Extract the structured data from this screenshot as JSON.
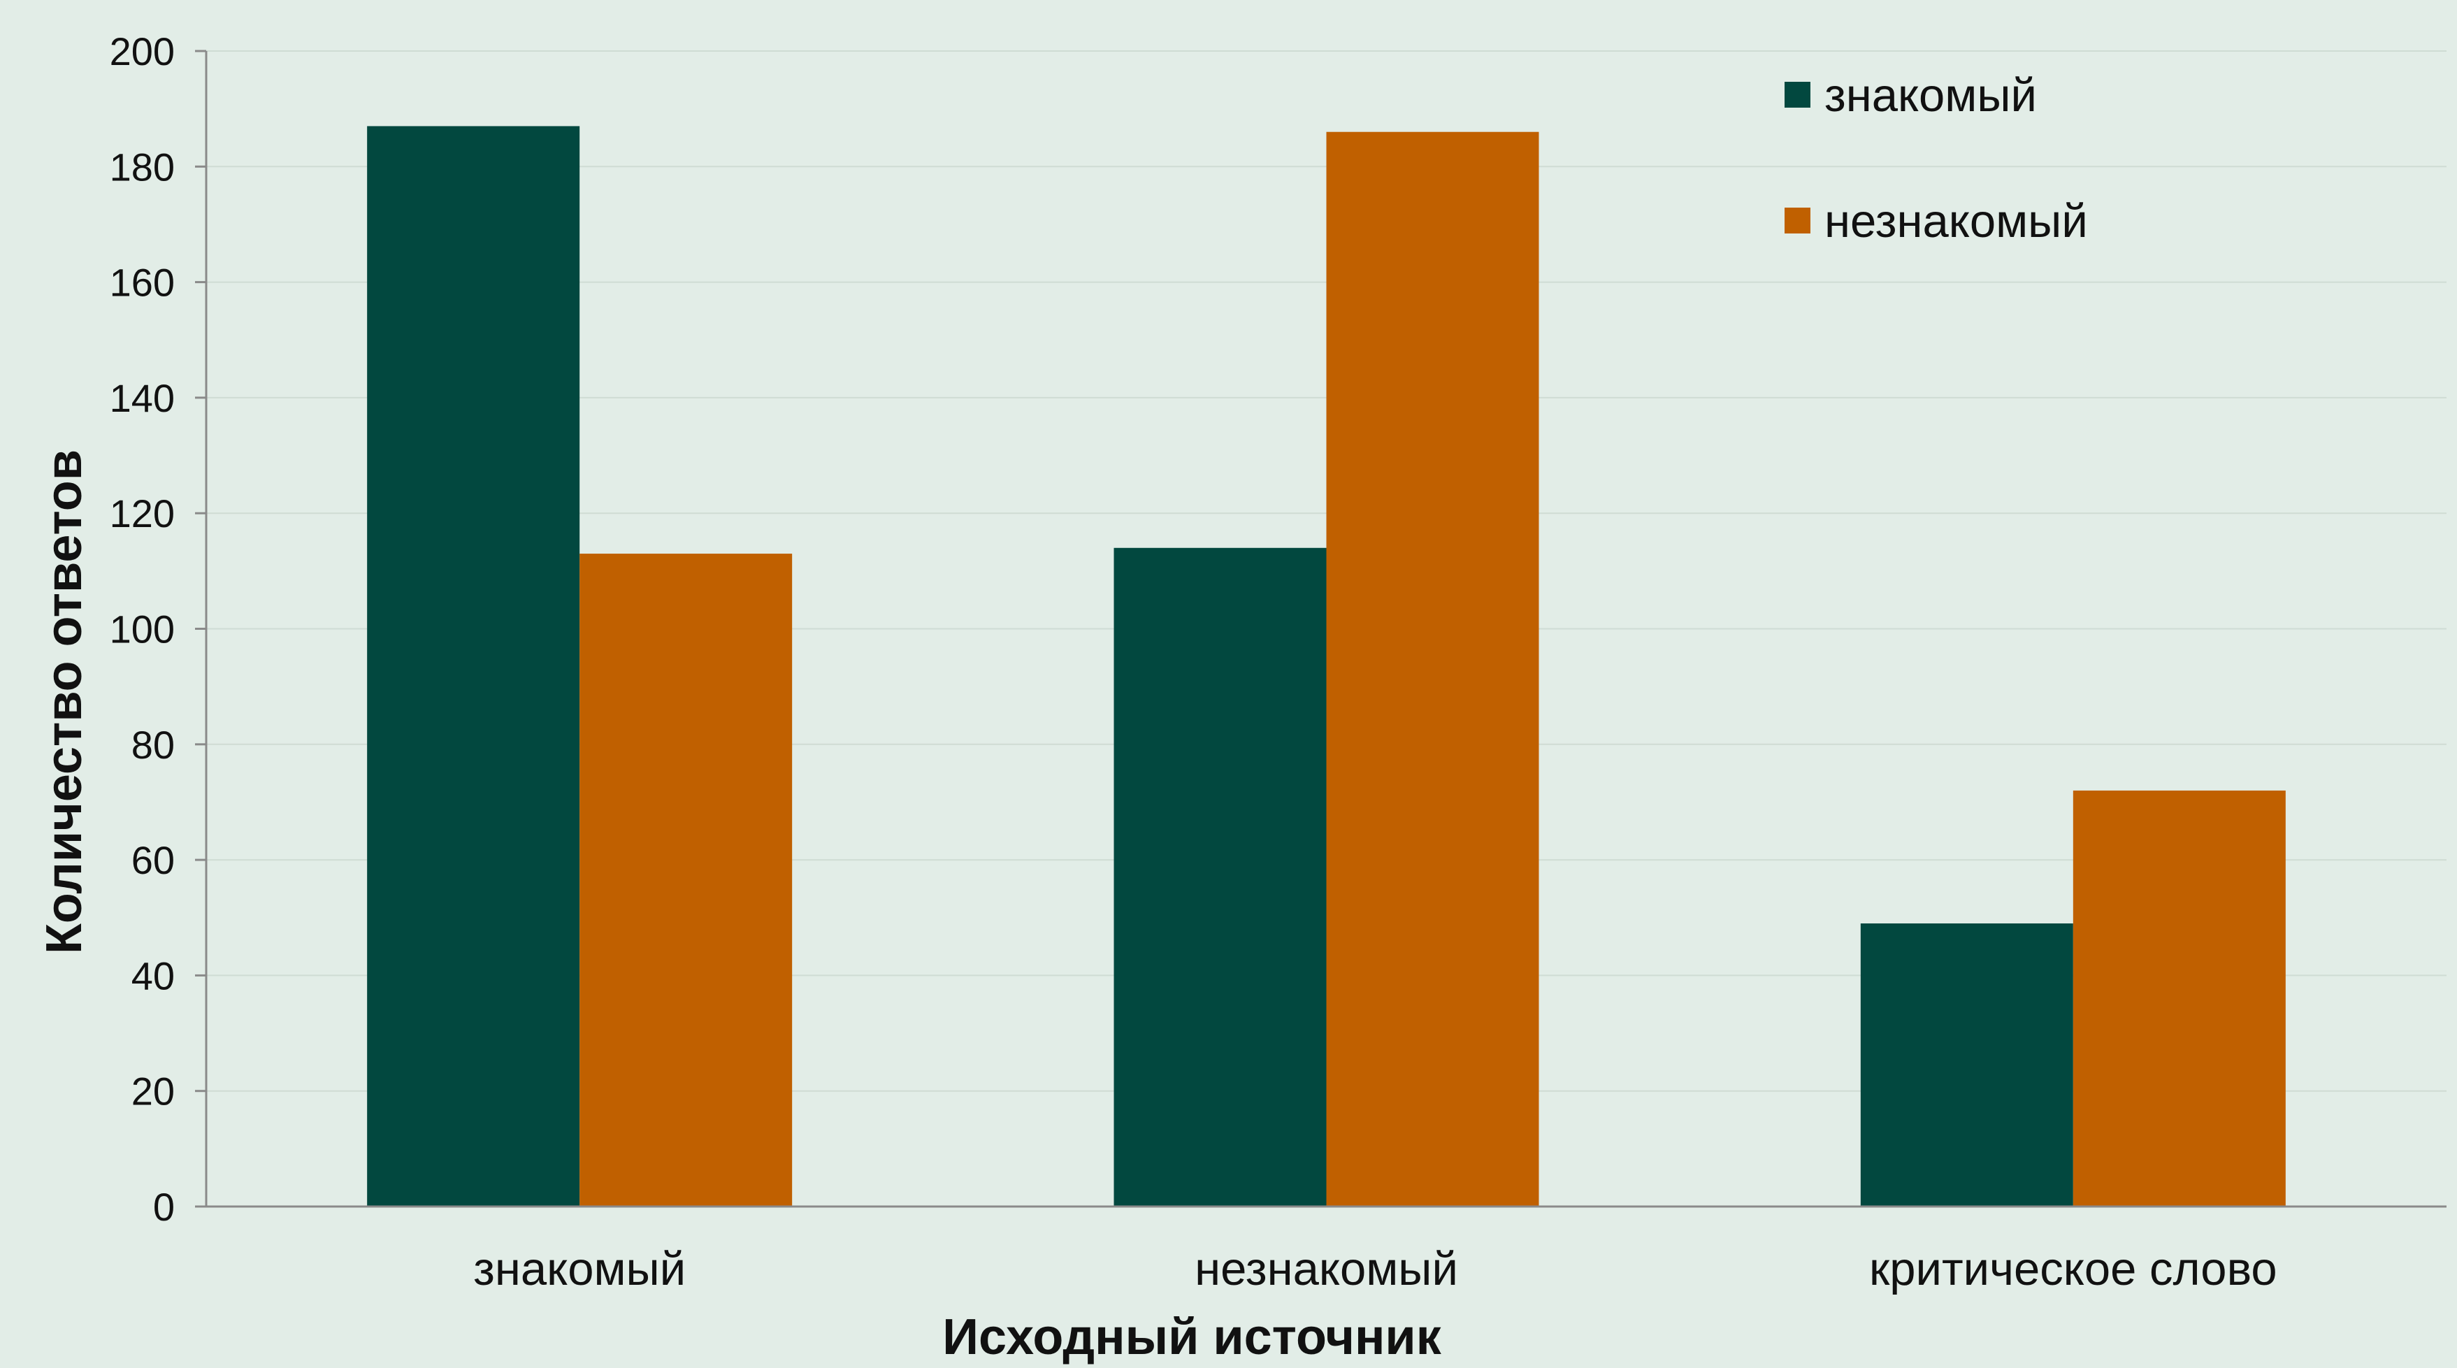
{
  "chart_data": {
    "type": "bar",
    "title": "",
    "xlabel": "Исходный источник",
    "ylabel": "Количество ответов",
    "categories": [
      "знакомый",
      "незнакомый",
      "критическое слово"
    ],
    "series": [
      {
        "name": "знакомый",
        "color": "#02483f",
        "values": [
          187,
          114,
          49
        ]
      },
      {
        "name": "незнакомый",
        "color": "#c06000",
        "values": [
          113,
          186,
          72
        ]
      }
    ],
    "ylim": [
      0,
      200
    ],
    "yticks": [
      0,
      20,
      40,
      60,
      80,
      100,
      120,
      140,
      160,
      180,
      200
    ],
    "grid": true,
    "legend_position": "top-right"
  }
}
